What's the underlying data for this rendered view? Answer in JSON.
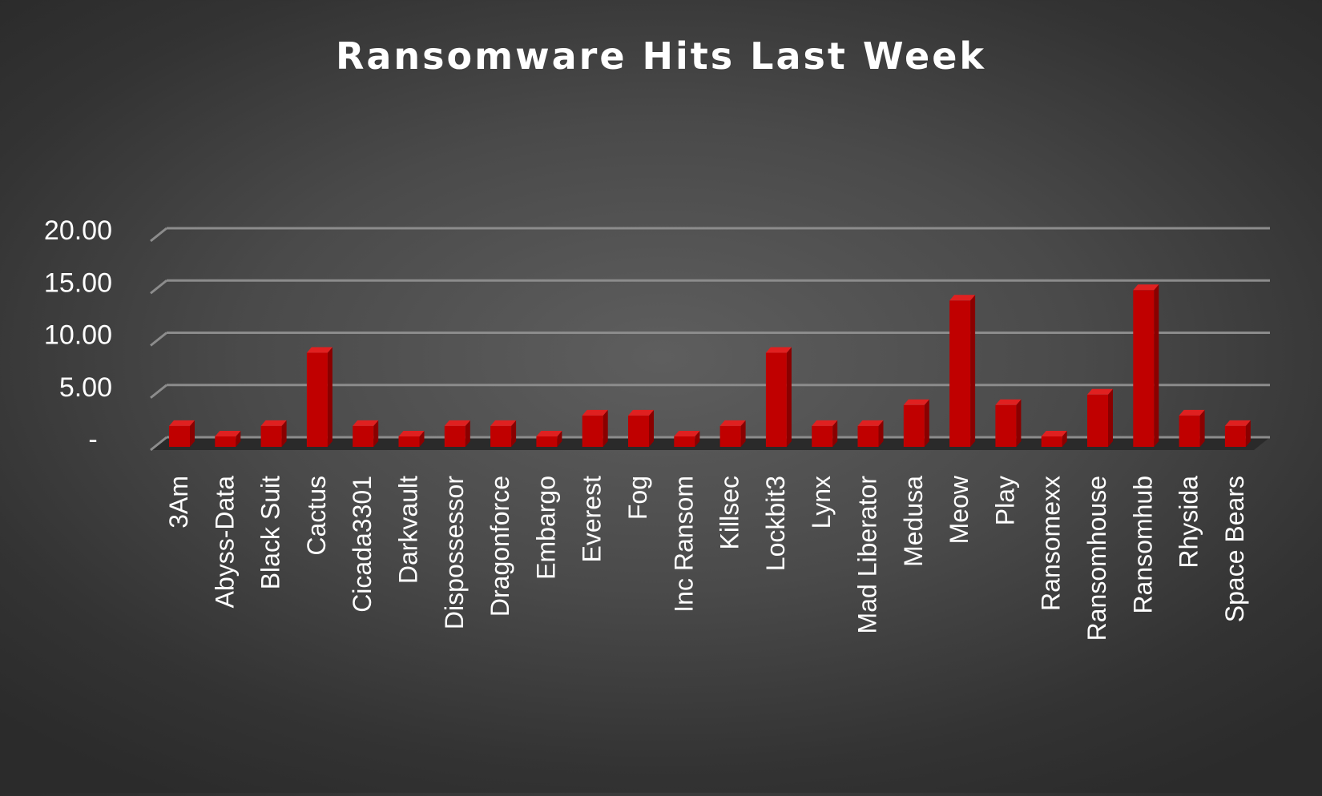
{
  "chart_data": {
    "type": "bar",
    "title": "Ransomware Hits Last Week",
    "xlabel": "",
    "ylabel": "",
    "ylim": [
      0,
      20
    ],
    "yticks": [
      "-",
      "5.00",
      "10.00",
      "15.00",
      "20.00"
    ],
    "ytick_values": [
      0,
      5,
      10,
      15,
      20
    ],
    "grid": true,
    "legend": "none",
    "style": "3d-column",
    "colors": {
      "bar_front": "#c00000",
      "bar_side": "#8a0000",
      "bar_top": "#e02020",
      "background": "#4a4a4a",
      "gridline": "#8c8c8c",
      "text": "#ffffff"
    },
    "categories": [
      "3Am",
      "Abyss-Data",
      "Black Suit",
      "Cactus",
      "Cicada3301",
      "Darkvault",
      "Dispossessor",
      "Dragonforce",
      "Embargo",
      "Everest",
      "Fog",
      "Inc Ransom",
      "Killsec",
      "Lockbit3",
      "Lynx",
      "Mad Liberator",
      "Medusa",
      "Meow",
      "Play",
      "Ransomexx",
      "Ransomhouse",
      "Ransomhub",
      "Rhysida",
      "Space Bears"
    ],
    "values": [
      2,
      1,
      2,
      9,
      2,
      1,
      2,
      2,
      1,
      3,
      3,
      1,
      2,
      9,
      2,
      2,
      4,
      14,
      4,
      1,
      5,
      15,
      3,
      2
    ]
  }
}
